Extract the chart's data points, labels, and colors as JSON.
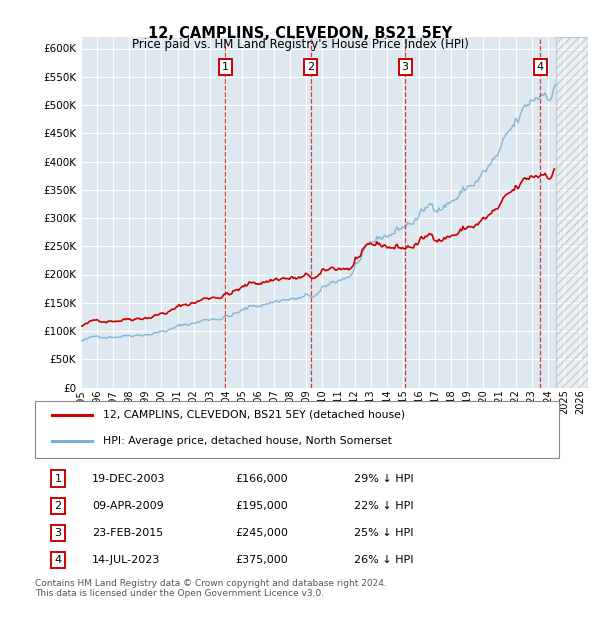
{
  "title": "12, CAMPLINS, CLEVEDON, BS21 5EY",
  "subtitle": "Price paid vs. HM Land Registry's House Price Index (HPI)",
  "hpi_color": "#7bafd4",
  "price_color": "#cc0000",
  "ylim": [
    0,
    620000
  ],
  "yticks": [
    0,
    50000,
    100000,
    150000,
    200000,
    250000,
    300000,
    350000,
    400000,
    450000,
    500000,
    550000,
    600000
  ],
  "xlim": [
    1995,
    2026.5
  ],
  "sales": [
    {
      "date_num": 2003.97,
      "price": 166000,
      "label": "1"
    },
    {
      "date_num": 2009.27,
      "price": 195000,
      "label": "2"
    },
    {
      "date_num": 2015.14,
      "price": 245000,
      "label": "3"
    },
    {
      "date_num": 2023.54,
      "price": 375000,
      "label": "4"
    }
  ],
  "legend_entries": [
    {
      "label": "12, CAMPLINS, CLEVEDON, BS21 5EY (detached house)",
      "color": "#cc0000"
    },
    {
      "label": "HPI: Average price, detached house, North Somerset",
      "color": "#7bafd4"
    }
  ],
  "table_rows": [
    {
      "num": "1",
      "date": "19-DEC-2003",
      "price": "£166,000",
      "pct": "29% ↓ HPI"
    },
    {
      "num": "2",
      "date": "09-APR-2009",
      "price": "£195,000",
      "pct": "22% ↓ HPI"
    },
    {
      "num": "3",
      "date": "23-FEB-2015",
      "price": "£245,000",
      "pct": "25% ↓ HPI"
    },
    {
      "num": "4",
      "date": "14-JUL-2023",
      "price": "£375,000",
      "pct": "26% ↓ HPI"
    }
  ],
  "footnote": "Contains HM Land Registry data © Crown copyright and database right 2024.\nThis data is licensed under the Open Government Licence v3.0.",
  "hatch_start": 2024.5,
  "hatch_end": 2026.5
}
